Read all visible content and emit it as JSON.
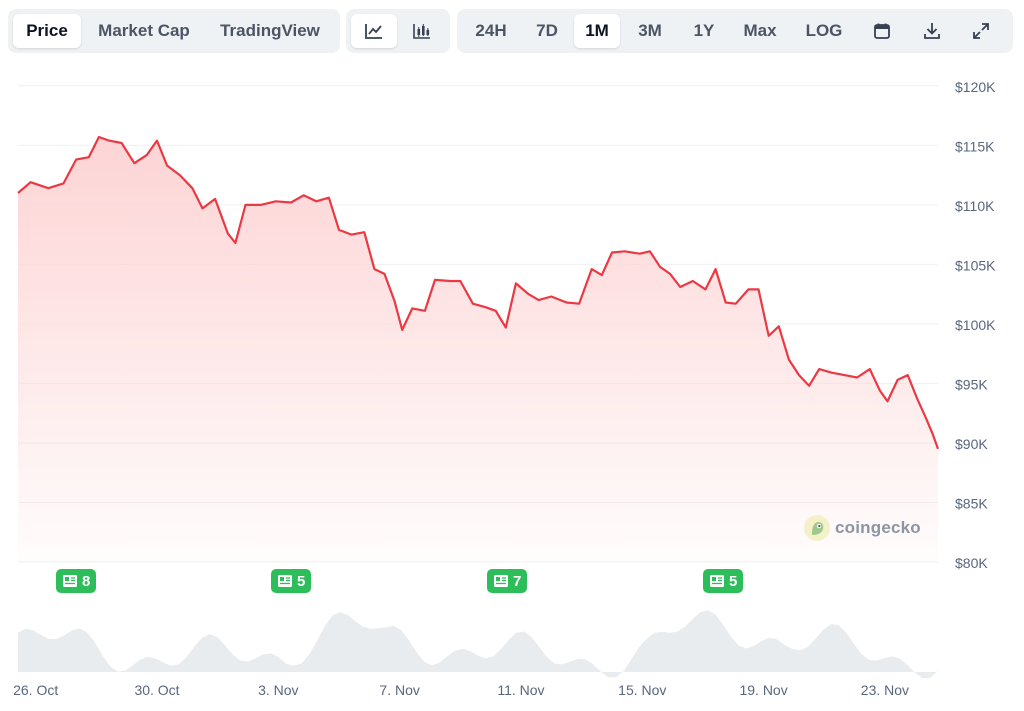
{
  "toolbar": {
    "view_tabs": [
      {
        "label": "Price",
        "active": true
      },
      {
        "label": "Market Cap",
        "active": false
      },
      {
        "label": "TradingView",
        "active": false
      }
    ],
    "chart_type_icons": [
      "line-chart-icon",
      "candlestick-chart-icon"
    ],
    "chart_type_active": "line-chart-icon",
    "ranges": [
      {
        "label": "24H",
        "active": false
      },
      {
        "label": "7D",
        "active": false
      },
      {
        "label": "1M",
        "active": true
      },
      {
        "label": "3M",
        "active": false
      },
      {
        "label": "1Y",
        "active": false
      },
      {
        "label": "Max",
        "active": false
      },
      {
        "label": "LOG",
        "active": false
      }
    ],
    "action_icons": [
      "calendar-icon",
      "download-icon",
      "expand-icon"
    ]
  },
  "news_badges": [
    {
      "count": "8",
      "date": "27 Oct"
    },
    {
      "count": "5",
      "date": "3 Nov"
    },
    {
      "count": "7",
      "date": "10 Nov"
    },
    {
      "count": "5",
      "date": "17 Nov"
    }
  ],
  "watermark": {
    "text": "coingecko",
    "icon": "coingecko-logo-icon"
  },
  "colors": {
    "line": "#ea3943",
    "fill_top": "#fdd4d5",
    "badge": "#2dbd5a",
    "volume": "#e9ecef",
    "grid": "#eef0f3"
  },
  "chart_data": {
    "type": "area",
    "unit": "USD",
    "y_ticks": [
      "$120K",
      "$115K",
      "$110K",
      "$105K",
      "$100K",
      "$95K",
      "$90K",
      "$85K",
      "$80K"
    ],
    "ylim": [
      80000,
      122000
    ],
    "x_ticks": [
      "26. Oct",
      "30. Oct",
      "3. Nov",
      "7. Nov",
      "11. Nov",
      "15. Nov",
      "19. Nov",
      "23. Nov"
    ],
    "x_domain": [
      "2025-10-25 10:00",
      "2025-11-24 18:00"
    ],
    "grid": true,
    "series": [
      {
        "points": [
          [
            "2025-10-25 10:00",
            111000
          ],
          [
            "2025-10-25 20:00",
            111900
          ],
          [
            "2025-10-26 10:00",
            111400
          ],
          [
            "2025-10-26 22:00",
            111800
          ],
          [
            "2025-10-27 08:00",
            113800
          ],
          [
            "2025-10-27 18:00",
            114000
          ],
          [
            "2025-10-28 02:00",
            115700
          ],
          [
            "2025-10-28 10:00",
            115400
          ],
          [
            "2025-10-28 20:00",
            115200
          ],
          [
            "2025-10-29 06:00",
            113500
          ],
          [
            "2025-10-29 16:00",
            114200
          ],
          [
            "2025-10-30 00:00",
            115400
          ],
          [
            "2025-10-30 08:00",
            113300
          ],
          [
            "2025-10-30 18:00",
            112500
          ],
          [
            "2025-10-31 04:00",
            111400
          ],
          [
            "2025-10-31 12:00",
            109700
          ],
          [
            "2025-10-31 22:00",
            110500
          ],
          [
            "2025-11-01 08:00",
            107600
          ],
          [
            "2025-11-01 14:00",
            106800
          ],
          [
            "2025-11-01 22:00",
            110000
          ],
          [
            "2025-11-02 10:00",
            110000
          ],
          [
            "2025-11-02 22:00",
            110300
          ],
          [
            "2025-11-03 10:00",
            110200
          ],
          [
            "2025-11-03 20:00",
            110800
          ],
          [
            "2025-11-04 06:00",
            110300
          ],
          [
            "2025-11-04 16:00",
            110600
          ],
          [
            "2025-11-05 00:00",
            107900
          ],
          [
            "2025-11-05 10:00",
            107500
          ],
          [
            "2025-11-05 20:00",
            107700
          ],
          [
            "2025-11-06 04:00",
            104600
          ],
          [
            "2025-11-06 12:00",
            104200
          ],
          [
            "2025-11-06 20:00",
            101900
          ],
          [
            "2025-11-07 02:00",
            99500
          ],
          [
            "2025-11-07 10:00",
            101300
          ],
          [
            "2025-11-07 20:00",
            101100
          ],
          [
            "2025-11-08 04:00",
            103700
          ],
          [
            "2025-11-08 16:00",
            103600
          ],
          [
            "2025-11-09 00:00",
            103600
          ],
          [
            "2025-11-09 10:00",
            101700
          ],
          [
            "2025-11-09 20:00",
            101400
          ],
          [
            "2025-11-10 04:00",
            101100
          ],
          [
            "2025-11-10 12:00",
            99700
          ],
          [
            "2025-11-10 20:00",
            103400
          ],
          [
            "2025-11-11 06:00",
            102500
          ],
          [
            "2025-11-11 14:00",
            102000
          ],
          [
            "2025-11-12 00:00",
            102300
          ],
          [
            "2025-11-12 12:00",
            101800
          ],
          [
            "2025-11-12 22:00",
            101700
          ],
          [
            "2025-11-13 08:00",
            104600
          ],
          [
            "2025-11-13 16:00",
            104100
          ],
          [
            "2025-11-14 00:00",
            106000
          ],
          [
            "2025-11-14 10:00",
            106100
          ],
          [
            "2025-11-14 22:00",
            105900
          ],
          [
            "2025-11-15 06:00",
            106100
          ],
          [
            "2025-11-15 14:00",
            104800
          ],
          [
            "2025-11-15 22:00",
            104200
          ],
          [
            "2025-11-16 06:00",
            103100
          ],
          [
            "2025-11-16 16:00",
            103600
          ],
          [
            "2025-11-17 02:00",
            102900
          ],
          [
            "2025-11-17 10:00",
            104600
          ],
          [
            "2025-11-17 18:00",
            101800
          ],
          [
            "2025-11-18 02:00",
            101700
          ],
          [
            "2025-11-18 12:00",
            102900
          ],
          [
            "2025-11-18 20:00",
            102900
          ],
          [
            "2025-11-19 04:00",
            99000
          ],
          [
            "2025-11-19 12:00",
            99800
          ],
          [
            "2025-11-19 20:00",
            97000
          ],
          [
            "2025-11-20 04:00",
            95700
          ],
          [
            "2025-11-20 12:00",
            94800
          ],
          [
            "2025-11-20 20:00",
            96200
          ],
          [
            "2025-11-21 06:00",
            95900
          ],
          [
            "2025-11-21 16:00",
            95700
          ],
          [
            "2025-11-22 02:00",
            95500
          ],
          [
            "2025-11-22 12:00",
            96200
          ],
          [
            "2025-11-22 20:00",
            94400
          ],
          [
            "2025-11-23 02:00",
            93500
          ],
          [
            "2025-11-23 10:00",
            95300
          ],
          [
            "2025-11-23 18:00",
            95700
          ],
          [
            "2025-11-24 02:00",
            93600
          ],
          [
            "2025-11-24 08:00",
            92200
          ],
          [
            "2025-11-24 14:00",
            90700
          ],
          [
            "2025-11-24 18:00",
            89500
          ]
        ]
      }
    ]
  }
}
